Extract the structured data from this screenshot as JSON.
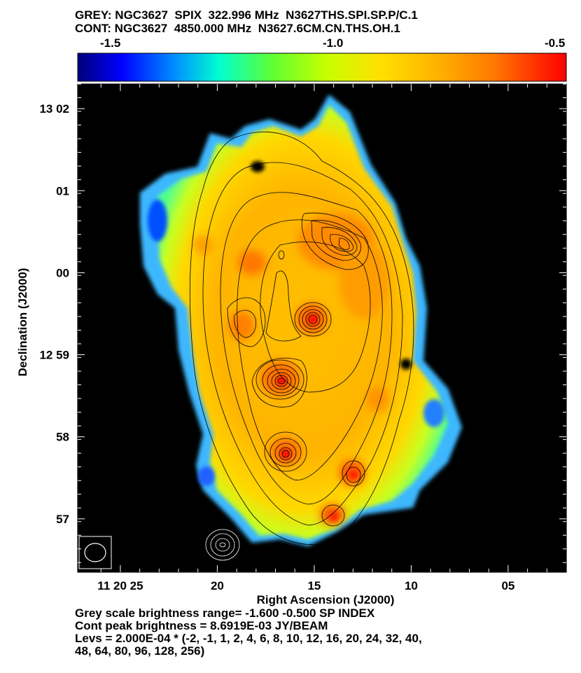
{
  "header": {
    "grey_line": "GREY: NGC3627  SPIX  322.996 MHz  N3627THS.SPI.SP.P/C.1",
    "cont_line": "CONT: NGC3627  4850.000 MHz  N3627.6CM.CN.THS.OH.1"
  },
  "colorbar": {
    "tick_labels": [
      "-1.5",
      "-1.0",
      "-0.5"
    ],
    "range": [
      -1.6,
      -0.5
    ],
    "colors": [
      "#00007a",
      "#0000ff",
      "#0090ff",
      "#00ffd0",
      "#60ff30",
      "#c8ff00",
      "#ffe000",
      "#ffb000",
      "#ff7a00",
      "#ff3000",
      "#ff0000"
    ]
  },
  "footer": {
    "line1": "Grey scale brightness range= -1.600 -0.500 SP INDEX",
    "line2": "Cont peak brightness = 8.6919E-03 JY/BEAM",
    "line3": "Levs = 2.000E-04 * (-2, -1, 1, 2, 4, 6, 8, 10, 12, 16, 20, 24, 32, 40,",
    "line4": "48, 64, 80, 96, 128, 256)"
  },
  "chart_data": {
    "type": "heatmap",
    "title": "GREY: NGC3627  SPIX  322.996 MHz  N3627THS.SPI.SP.P/C.1",
    "xlabel": "Right Ascension (J2000)",
    "ylabel": "Declination (J2000)",
    "x_ticks": [
      "11 20 25",
      "20",
      "15",
      "10",
      "05"
    ],
    "y_ticks": [
      "13 02",
      "01",
      "00",
      "12 59",
      "58",
      "57"
    ],
    "xlim_seconds": [
      27.2,
      2.0
    ],
    "ylim_arcmin": [
      -3.65,
      2.3
    ],
    "value_range": [
      -1.6,
      -0.5
    ],
    "value_unit": "SP INDEX",
    "contour_peak": "8.6919E-03 JY/BEAM",
    "contour_base": "2.000E-04",
    "contour_multipliers": [
      -2,
      -1,
      1,
      2,
      4,
      6,
      8,
      10,
      12,
      16,
      20,
      24,
      32,
      40,
      48,
      64,
      80,
      96,
      128,
      256
    ],
    "peaks": [
      {
        "ra_s": 16.5,
        "dec_arcmin": -1.25,
        "value": -0.55
      },
      {
        "ra_s": 15.0,
        "dec_arcmin": -0.5,
        "value": -0.55
      },
      {
        "ra_s": 16.3,
        "dec_arcmin": -2.15,
        "value": -0.55
      },
      {
        "ra_s": 13.0,
        "dec_arcmin": -2.4,
        "value": -0.6
      },
      {
        "ra_s": 14.0,
        "dec_arcmin": -2.95,
        "value": -0.6
      },
      {
        "ra_s": 13.4,
        "dec_arcmin": 0.45,
        "value": -0.7
      },
      {
        "ra_s": 18.5,
        "dec_arcmin": -0.6,
        "value": -0.7
      },
      {
        "ra_s": 17.8,
        "dec_arcmin": 0.25,
        "value": -0.7
      }
    ]
  }
}
